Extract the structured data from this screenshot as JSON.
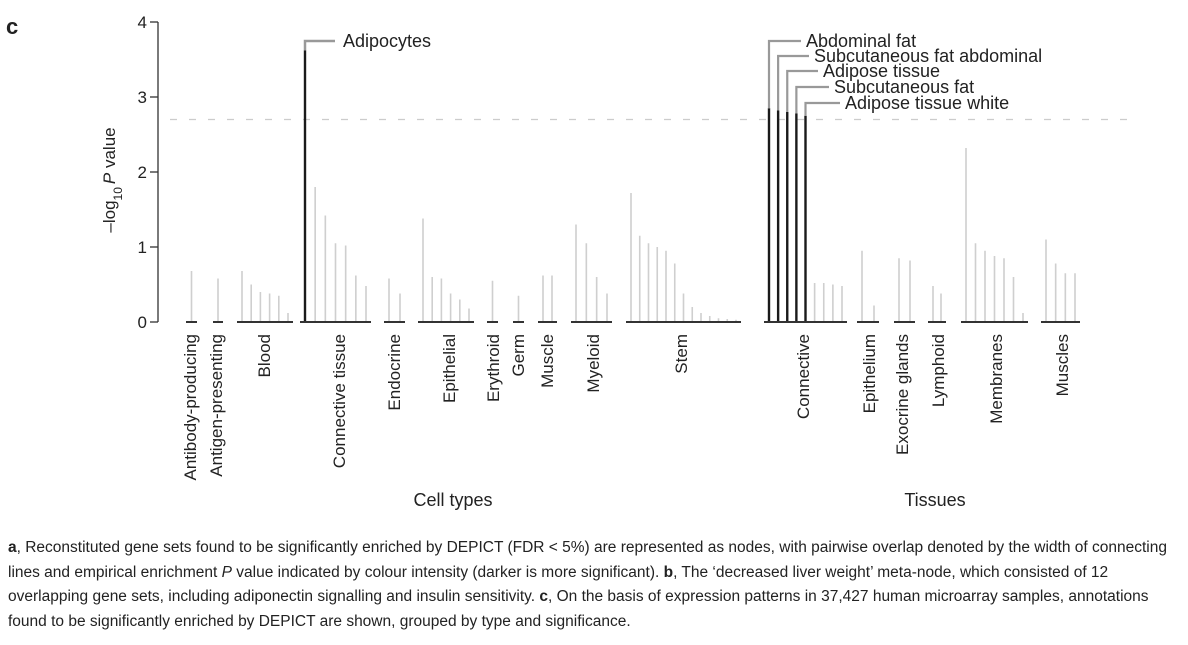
{
  "panel_label": "c",
  "chart_data": {
    "type": "bar",
    "ylabel_prefix": "–log",
    "ylabel_sub": "10",
    "ylabel_p": "P",
    "ylabel_suffix": " value",
    "ylim": [
      0,
      4
    ],
    "yticks": [
      0,
      1,
      2,
      3,
      4
    ],
    "significance_threshold": 2.7,
    "sections": [
      {
        "label": "Cell types",
        "groups": [
          {
            "name": "Antibody-producing",
            "values": [
              0.68
            ]
          },
          {
            "name": "Antigen-presenting",
            "values": [
              0.58
            ]
          },
          {
            "name": "Blood",
            "values": [
              0.68,
              0.5,
              0.4,
              0.38,
              0.35,
              0.12
            ]
          },
          {
            "name": "Connective tissue",
            "values": [
              3.62,
              1.8,
              1.42,
              1.05,
              1.02,
              0.62,
              0.48
            ],
            "highlighted": [
              0
            ]
          },
          {
            "name": "Endocrine",
            "values": [
              0.58,
              0.38
            ]
          },
          {
            "name": "Epithelial",
            "values": [
              1.38,
              0.6,
              0.58,
              0.38,
              0.3,
              0.18
            ]
          },
          {
            "name": "Erythroid",
            "values": [
              0.55
            ]
          },
          {
            "name": "Germ",
            "values": [
              0.35
            ]
          },
          {
            "name": "Muscle",
            "values": [
              0.62,
              0.62
            ]
          },
          {
            "name": "Myeloid",
            "values": [
              1.3,
              1.05,
              0.6,
              0.38
            ]
          },
          {
            "name": "Stem",
            "values": [
              1.72,
              1.15,
              1.05,
              1.0,
              0.95,
              0.78,
              0.38,
              0.2,
              0.12,
              0.08,
              0.05,
              0.04,
              0.03
            ]
          }
        ]
      },
      {
        "label": "Tissues",
        "groups": [
          {
            "name": "Connective",
            "values": [
              2.85,
              2.82,
              2.8,
              2.78,
              2.75,
              0.52,
              0.52,
              0.5,
              0.48
            ],
            "highlighted": [
              0,
              1,
              2,
              3,
              4
            ]
          },
          {
            "name": "Epithelium",
            "values": [
              0.95,
              0.22
            ]
          },
          {
            "name": "Exocrine glands",
            "values": [
              0.85,
              0.82
            ]
          },
          {
            "name": "Lymphoid",
            "values": [
              0.48,
              0.38
            ]
          },
          {
            "name": "Membranes",
            "values": [
              2.32,
              1.05,
              0.95,
              0.88,
              0.85,
              0.6,
              0.12
            ]
          },
          {
            "name": "Muscles",
            "values": [
              1.1,
              0.78,
              0.65,
              0.65
            ]
          }
        ]
      }
    ],
    "annotations": [
      "Adipocytes",
      "Abdominal fat",
      "Subcutaneous fat abdominal",
      "Adipose tissue",
      "Subcutaneous fat",
      "Adipose tissue white"
    ],
    "colors": {
      "significant": "#1a1a1a",
      "nonsignificant": "#cfcfcf",
      "threshold": "#cccccc",
      "axis": "#333333"
    }
  },
  "caption": {
    "a_label": "a",
    "a_text": ", Reconstituted gene sets found to be significantly enriched by DEPICT (FDR < 5%) are represented as nodes, with pairwise overlap denoted by the width of connecting lines and empirical enrichment ",
    "a_p": "P",
    "a_text2": " value indicated by colour intensity (darker is more significant). ",
    "b_label": "b",
    "b_text": ", The ‘decreased liver weight’ meta-node, which consisted of 12 overlapping gene sets, including adiponectin signalling and insulin sensitivity. ",
    "c_label": "c",
    "c_text": ", On the basis of expression patterns in 37,427 human microarray samples, annotations found to be significantly enriched by DEPICT are shown, grouped by type and significance."
  }
}
